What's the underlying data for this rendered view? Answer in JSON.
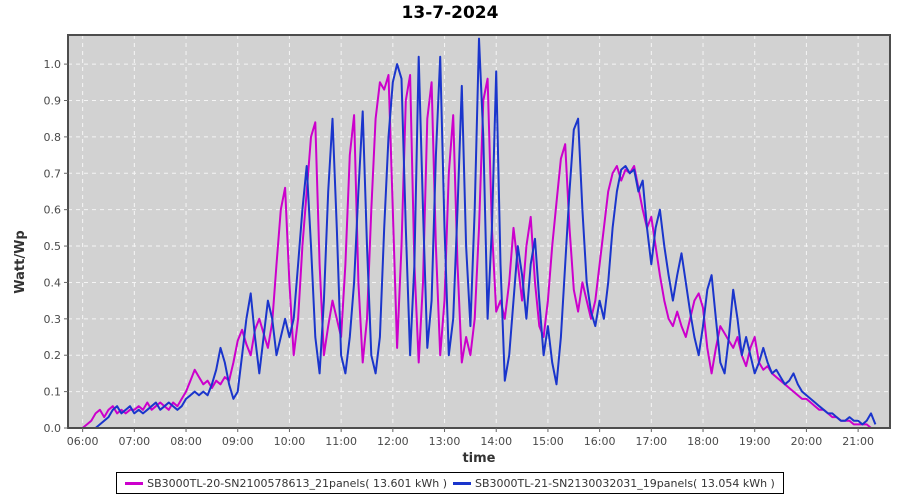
{
  "title": "13-7-2024",
  "axes": {
    "y_label": "Watt/Wp",
    "x_label": "time",
    "y_tick_labels": [
      "0.0",
      "0.1",
      "0.2",
      "0.3",
      "0.4",
      "0.5",
      "0.6",
      "0.7",
      "0.8",
      "0.9",
      "1.0"
    ],
    "x_tick_labels": [
      "06:00",
      "07:00",
      "08:00",
      "09:00",
      "10:00",
      "11:00",
      "12:00",
      "13:00",
      "14:00",
      "15:00",
      "16:00",
      "17:00",
      "18:00",
      "19:00",
      "20:00",
      "21:00"
    ]
  },
  "legend": {
    "items": [
      {
        "label": "SB3000TL-20-SN2100578613_21panels( 13.601 kWh )",
        "color": "#cc00cc"
      },
      {
        "label": "SB3000TL-21-SN2130032031_19panels( 13.054 kWh )",
        "color": "#1a35cc"
      }
    ]
  },
  "colors": {
    "plot_bg": "#d2d2d2",
    "plot_border": "#4d4d4d",
    "grid": "#f5f5f5",
    "tick": "#666666",
    "series_magenta": "#cc00cc",
    "series_blue": "#1a35cc"
  },
  "chart_data": {
    "type": "line",
    "title": "13-7-2024",
    "xlabel": "time",
    "ylabel": "Watt/Wp",
    "grid": true,
    "legend_position": "bottom",
    "ylim": [
      0,
      1.08
    ],
    "x_range_minutes": [
      343,
      1297
    ],
    "x_tick_minutes": [
      360,
      420,
      480,
      540,
      600,
      660,
      720,
      780,
      840,
      900,
      960,
      1020,
      1080,
      1140,
      1200,
      1260
    ],
    "y_ticks": [
      0,
      0.1,
      0.2,
      0.3,
      0.4,
      0.5,
      0.6,
      0.7,
      0.8,
      0.9,
      1.0
    ],
    "x_start_minutes": 360,
    "x_step_minutes": 5,
    "series": [
      {
        "name": "SB3000TL-20-SN2100578613_21panels( 13.601 kWh )",
        "color": "#cc00cc",
        "values": [
          0.0,
          0.01,
          0.02,
          0.04,
          0.05,
          0.03,
          0.05,
          0.06,
          0.04,
          0.05,
          0.04,
          0.05,
          0.05,
          0.06,
          0.05,
          0.07,
          0.05,
          0.06,
          0.07,
          0.06,
          0.05,
          0.07,
          0.06,
          0.08,
          0.1,
          0.13,
          0.16,
          0.14,
          0.12,
          0.13,
          0.11,
          0.13,
          0.12,
          0.14,
          0.13,
          0.18,
          0.24,
          0.27,
          0.23,
          0.2,
          0.27,
          0.3,
          0.26,
          0.22,
          0.29,
          0.45,
          0.6,
          0.66,
          0.4,
          0.2,
          0.3,
          0.5,
          0.65,
          0.8,
          0.84,
          0.45,
          0.2,
          0.28,
          0.35,
          0.3,
          0.25,
          0.45,
          0.75,
          0.86,
          0.4,
          0.18,
          0.3,
          0.6,
          0.85,
          0.95,
          0.93,
          0.97,
          0.6,
          0.22,
          0.5,
          0.9,
          0.97,
          0.45,
          0.18,
          0.4,
          0.85,
          0.95,
          0.5,
          0.2,
          0.35,
          0.7,
          0.86,
          0.45,
          0.18,
          0.25,
          0.2,
          0.3,
          0.55,
          0.9,
          0.96,
          0.55,
          0.32,
          0.35,
          0.3,
          0.4,
          0.55,
          0.45,
          0.35,
          0.5,
          0.58,
          0.4,
          0.28,
          0.25,
          0.35,
          0.5,
          0.62,
          0.74,
          0.78,
          0.55,
          0.38,
          0.32,
          0.4,
          0.35,
          0.3,
          0.35,
          0.45,
          0.55,
          0.65,
          0.7,
          0.72,
          0.68,
          0.71,
          0.7,
          0.72,
          0.66,
          0.6,
          0.55,
          0.58,
          0.5,
          0.42,
          0.35,
          0.3,
          0.28,
          0.32,
          0.28,
          0.25,
          0.3,
          0.35,
          0.37,
          0.33,
          0.22,
          0.15,
          0.22,
          0.28,
          0.26,
          0.24,
          0.22,
          0.25,
          0.2,
          0.17,
          0.22,
          0.25,
          0.18,
          0.16,
          0.17,
          0.15,
          0.14,
          0.13,
          0.12,
          0.11,
          0.1,
          0.09,
          0.08,
          0.08,
          0.07,
          0.06,
          0.05,
          0.05,
          0.04,
          0.03,
          0.03,
          0.02,
          0.02,
          0.02,
          0.01,
          0.01,
          0.01,
          0.01,
          0.0,
          0.0
        ]
      },
      {
        "name": "SB3000TL-21-SN2130032031_19panels( 13.054 kWh )",
        "color": "#1a35cc",
        "values": [
          0.0,
          0.0,
          0.0,
          0.0,
          0.01,
          0.02,
          0.03,
          0.05,
          0.06,
          0.04,
          0.05,
          0.06,
          0.04,
          0.05,
          0.04,
          0.05,
          0.06,
          0.07,
          0.05,
          0.06,
          0.07,
          0.06,
          0.05,
          0.06,
          0.08,
          0.09,
          0.1,
          0.09,
          0.1,
          0.09,
          0.12,
          0.16,
          0.22,
          0.18,
          0.12,
          0.08,
          0.1,
          0.2,
          0.3,
          0.37,
          0.25,
          0.15,
          0.25,
          0.35,
          0.3,
          0.2,
          0.25,
          0.3,
          0.25,
          0.3,
          0.45,
          0.6,
          0.72,
          0.5,
          0.25,
          0.15,
          0.35,
          0.65,
          0.85,
          0.55,
          0.2,
          0.15,
          0.25,
          0.4,
          0.65,
          0.87,
          0.5,
          0.2,
          0.15,
          0.25,
          0.55,
          0.8,
          0.95,
          1.0,
          0.96,
          0.55,
          0.2,
          0.45,
          1.02,
          0.6,
          0.22,
          0.35,
          0.75,
          1.02,
          0.55,
          0.2,
          0.3,
          0.6,
          0.94,
          0.5,
          0.28,
          0.6,
          1.07,
          0.8,
          0.3,
          0.55,
          0.98,
          0.45,
          0.13,
          0.2,
          0.35,
          0.5,
          0.42,
          0.3,
          0.45,
          0.52,
          0.35,
          0.2,
          0.28,
          0.18,
          0.12,
          0.25,
          0.45,
          0.65,
          0.82,
          0.85,
          0.6,
          0.4,
          0.32,
          0.28,
          0.35,
          0.3,
          0.4,
          0.55,
          0.65,
          0.71,
          0.72,
          0.7,
          0.71,
          0.65,
          0.68,
          0.55,
          0.45,
          0.55,
          0.6,
          0.5,
          0.42,
          0.35,
          0.42,
          0.48,
          0.4,
          0.32,
          0.25,
          0.2,
          0.28,
          0.38,
          0.42,
          0.3,
          0.18,
          0.15,
          0.25,
          0.38,
          0.3,
          0.2,
          0.25,
          0.2,
          0.15,
          0.18,
          0.22,
          0.18,
          0.15,
          0.16,
          0.14,
          0.12,
          0.13,
          0.15,
          0.12,
          0.1,
          0.09,
          0.08,
          0.07,
          0.06,
          0.05,
          0.04,
          0.04,
          0.03,
          0.02,
          0.02,
          0.03,
          0.02,
          0.02,
          0.01,
          0.02,
          0.04,
          0.01
        ]
      }
    ]
  }
}
